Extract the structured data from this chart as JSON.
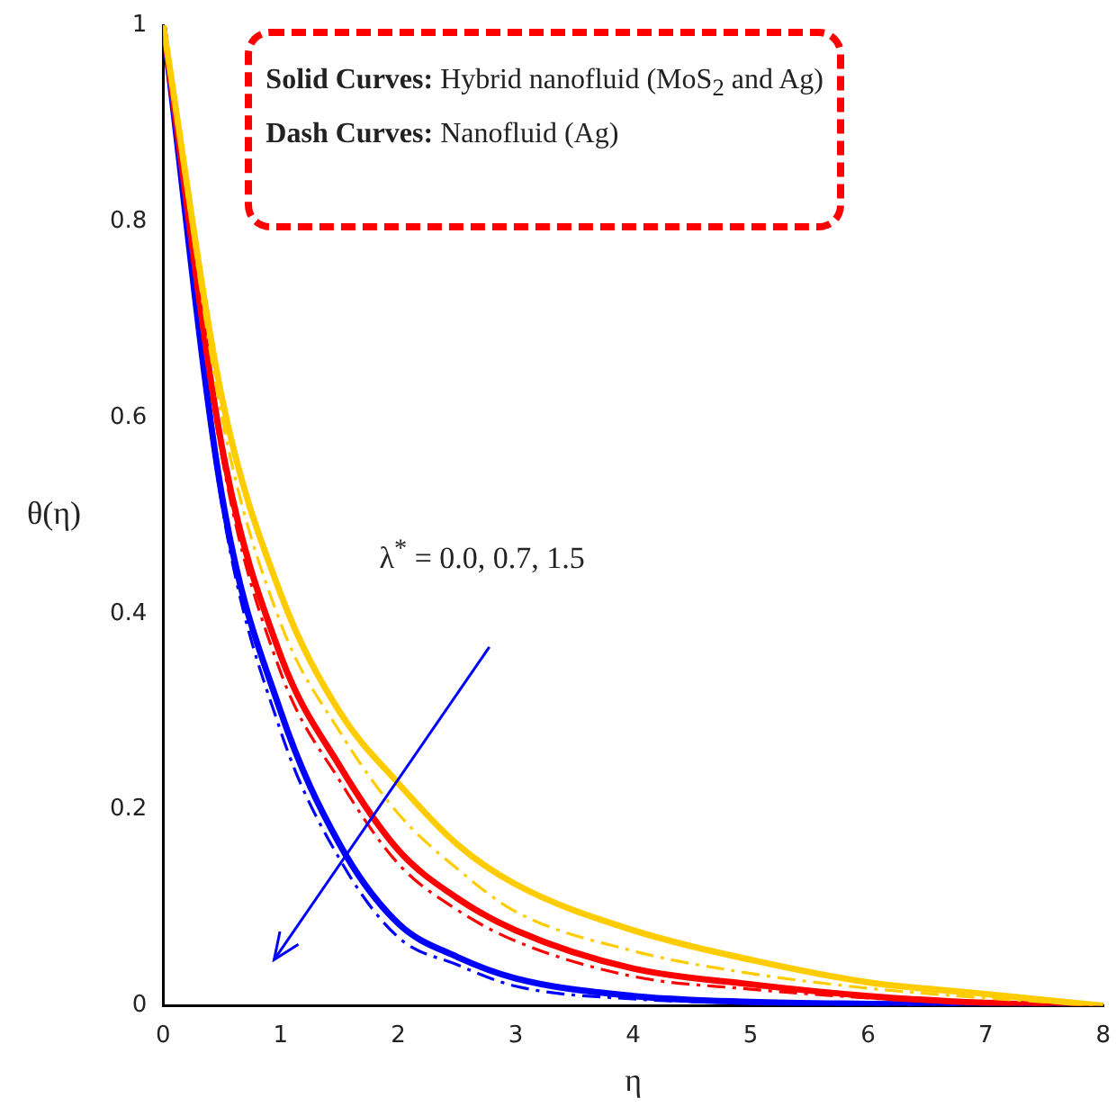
{
  "chart_data": {
    "type": "line",
    "xlabel": "η",
    "ylabel": "θ(η)",
    "x": [
      0,
      0.5,
      1,
      1.5,
      2,
      2.5,
      3,
      4,
      5,
      6,
      7,
      8
    ],
    "xlim": [
      0,
      8
    ],
    "xticks": [
      0,
      1,
      2,
      3,
      4,
      5,
      6,
      7,
      8
    ],
    "ylim": [
      0,
      1
    ],
    "yticks": [
      0,
      0.2,
      0.4,
      0.6,
      0.8,
      1
    ],
    "grid": false,
    "legend": false,
    "marker": "none",
    "annotations": [
      "Solid Curves: Hybrid nanofluid (MoS$_{2}$ and Ag)",
      "Dash Curves: Nanofluid (Ag)",
      "λ$^{*}$ = 0.0, 0.7, 1.5"
    ],
    "series": [
      {
        "color": "#ffcc00",
        "line_style": "solid",
        "values": [
          1,
          0.62,
          0.42,
          0.3,
          0.227,
          0.165,
          0.124,
          0.077,
          0.047,
          0.024,
          0.012,
          0
        ]
      },
      {
        "color": "#ffcc00",
        "line_style": "dashed",
        "values": [
          1,
          0.6,
          0.39,
          0.28,
          0.196,
          0.14,
          0.096,
          0.056,
          0.033,
          0.018,
          0.008,
          0
        ]
      },
      {
        "color": "#ff0000",
        "line_style": "solid",
        "values": [
          1,
          0.57,
          0.357,
          0.245,
          0.159,
          0.11,
          0.077,
          0.038,
          0.022,
          0.01,
          0.003,
          0
        ]
      },
      {
        "color": "#ff0000",
        "line_style": "dashed",
        "values": [
          1,
          0.56,
          0.34,
          0.23,
          0.145,
          0.098,
          0.066,
          0.03,
          0.017,
          0.008,
          0.002,
          0
        ]
      },
      {
        "color": "#0000ff",
        "line_style": "solid",
        "values": [
          1,
          0.52,
          0.3,
          0.165,
          0.084,
          0.05,
          0.028,
          0.01,
          0.004,
          0.002,
          0.001,
          0
        ]
      },
      {
        "color": "#0000ff",
        "line_style": "dashed",
        "values": [
          1,
          0.51,
          0.28,
          0.15,
          0.07,
          0.042,
          0.02,
          0.007,
          0.003,
          0.001,
          0,
          0
        ]
      }
    ]
  }
}
